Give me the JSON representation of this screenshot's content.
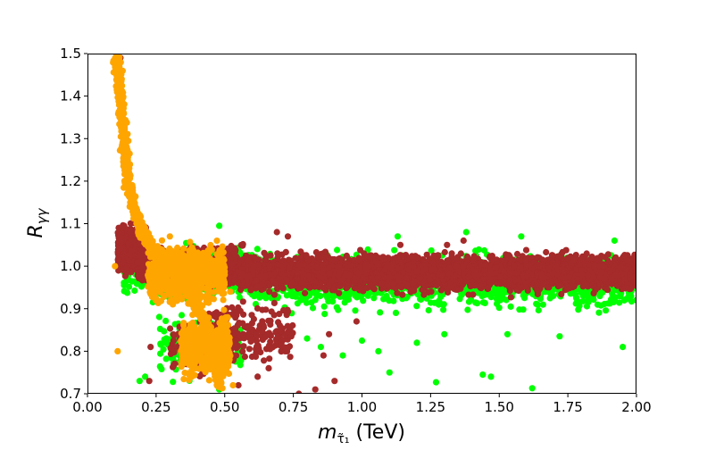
{
  "chart_data": {
    "type": "scatter",
    "xlabel": "m_τ̃₁ (TeV)",
    "xlabel_main": "m",
    "xlabel_sub": "τ̃₁",
    "xlabel_unit": " (TeV)",
    "ylabel": "R_γγ",
    "ylabel_main": "R",
    "ylabel_sub": "γγ",
    "xlim": [
      0.0,
      2.0
    ],
    "ylim": [
      0.7,
      1.5
    ],
    "xticks": [
      "0.00",
      "0.25",
      "0.50",
      "0.75",
      "1.00",
      "1.25",
      "1.50",
      "1.75",
      "2.00"
    ],
    "yticks": [
      "0.7",
      "0.8",
      "0.9",
      "1.0",
      "1.1",
      "1.2",
      "1.3",
      "1.4",
      "1.5"
    ],
    "grid": false,
    "legend": "none",
    "series": [
      {
        "color": "#00ff00",
        "regions": [
          {
            "x": [
              0.13,
              0.62
            ],
            "y": [
              0.89,
              1.08
            ],
            "n": 550
          },
          {
            "x": [
              0.6,
              2.0
            ],
            "y": [
              0.87,
              1.06
            ],
            "n": 1500
          },
          {
            "x": [
              0.26,
              0.56
            ],
            "y": [
              0.7,
              0.92
            ],
            "n": 160
          }
        ],
        "points": [
          [
            0.19,
            0.73
          ],
          [
            0.21,
            0.74
          ],
          [
            0.48,
            0.71
          ],
          [
            1.1,
            0.75
          ],
          [
            1.44,
            0.745
          ],
          [
            1.47,
            0.74
          ],
          [
            1.62,
            0.713
          ],
          [
            1.95,
            0.81
          ],
          [
            1.27,
            0.727
          ],
          [
            0.93,
            0.79
          ],
          [
            1.06,
            0.8
          ],
          [
            1.2,
            0.82
          ],
          [
            1.3,
            0.84
          ],
          [
            1.53,
            0.84
          ],
          [
            1.72,
            0.835
          ],
          [
            0.7,
            0.83
          ],
          [
            0.8,
            0.83
          ],
          [
            0.85,
            0.81
          ],
          [
            1.0,
            0.825
          ],
          [
            1.38,
            1.08
          ],
          [
            0.48,
            1.095
          ],
          [
            1.92,
            1.06
          ],
          [
            1.58,
            1.07
          ],
          [
            1.13,
            1.07
          ]
        ]
      },
      {
        "color": "#a52a2a",
        "regions": [
          {
            "x": [
              0.11,
              0.22
            ],
            "y": [
              0.96,
              1.13
            ],
            "n": 350
          },
          {
            "x": [
              0.18,
              0.6
            ],
            "y": [
              0.93,
              1.07
            ],
            "n": 700
          },
          {
            "x": [
              0.55,
              2.0
            ],
            "y": [
              0.92,
              1.05
            ],
            "n": 3500
          },
          {
            "x": [
              0.45,
              0.75
            ],
            "y": [
              0.74,
              0.95
            ],
            "n": 200
          },
          {
            "x": [
              0.3,
              0.55
            ],
            "y": [
              0.7,
              0.92
            ],
            "n": 150
          }
        ],
        "points": [
          [
            0.13,
            1.38
          ],
          [
            0.14,
            1.3
          ],
          [
            0.12,
            1.49
          ],
          [
            0.225,
            0.73
          ],
          [
            0.77,
            0.7
          ],
          [
            0.83,
            0.71
          ],
          [
            0.9,
            0.73
          ],
          [
            0.86,
            0.79
          ],
          [
            0.55,
            0.72
          ],
          [
            0.62,
            0.74
          ],
          [
            0.66,
            0.76
          ],
          [
            0.72,
            0.8
          ],
          [
            0.88,
            0.84
          ],
          [
            0.98,
            0.87
          ],
          [
            1.14,
            1.05
          ],
          [
            1.31,
            1.05
          ],
          [
            1.37,
            1.06
          ],
          [
            0.69,
            1.08
          ],
          [
            0.73,
            1.07
          ],
          [
            0.23,
            0.81
          ]
        ]
      },
      {
        "color": "#ffa500",
        "regions": [
          {
            "x": [
              0.22,
              0.5
            ],
            "y": [
              0.88,
              1.08
            ],
            "n": 700
          },
          {
            "x": [
              0.34,
              0.52
            ],
            "y": [
              0.7,
              0.92
            ],
            "n": 450
          }
        ],
        "points": [
          [
            0.11,
            0.8
          ],
          [
            0.1,
            1.0
          ],
          [
            0.25,
            1.0
          ],
          [
            0.52,
            0.94
          ],
          [
            0.5,
            0.86
          ],
          [
            0.53,
            0.72
          ],
          [
            0.38,
            0.74
          ],
          [
            0.36,
            0.8
          ],
          [
            0.3,
            1.07
          ],
          [
            0.32,
            1.02
          ]
        ],
        "band": {
          "curve": [
            [
              0.105,
              1.49
            ],
            [
              0.12,
              1.4
            ],
            [
              0.135,
              1.28
            ],
            [
              0.15,
              1.19
            ],
            [
              0.17,
              1.13
            ],
            [
              0.2,
              1.08
            ],
            [
              0.24,
              1.04
            ],
            [
              0.3,
              1.0
            ],
            [
              0.36,
              0.95
            ],
            [
              0.42,
              0.88
            ],
            [
              0.46,
              0.8
            ],
            [
              0.48,
              0.72
            ]
          ],
          "n": 1300
        }
      }
    ]
  }
}
